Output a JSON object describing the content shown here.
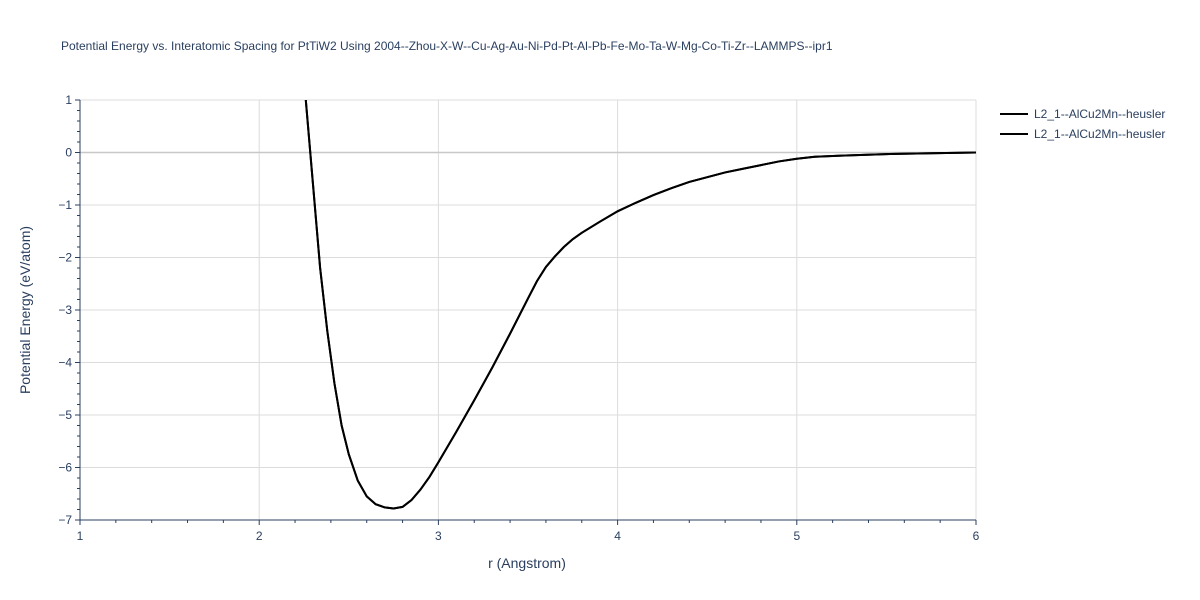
{
  "chart_data": {
    "type": "line",
    "title": "Potential Energy vs. Interatomic Spacing for PtTiW2 Using 2004--Zhou-X-W--Cu-Ag-Au-Ni-Pd-Pt-Al-Pb-Fe-Mo-Ta-W-Mg-Co-Ti-Zr--LAMMPS--ipr1",
    "xlabel": "r (Angstrom)",
    "ylabel": "Potential Energy (eV/atom)",
    "xlim": [
      1,
      6
    ],
    "ylim": [
      -7,
      1
    ],
    "x_ticks": [
      1,
      2,
      3,
      4,
      5,
      6
    ],
    "x_tick_labels": [
      "1",
      "2",
      "3",
      "4",
      "5",
      "6"
    ],
    "y_ticks": [
      1,
      0,
      -1,
      -2,
      -3,
      -4,
      -5,
      -6,
      -7
    ],
    "y_tick_labels": [
      "1",
      "0",
      "−1",
      "−2",
      "−3",
      "−4",
      "−5",
      "−6",
      "−7"
    ],
    "grid": true,
    "legend_position": "top-right",
    "series": [
      {
        "name": "L2_1--AlCu2Mn--heusler",
        "color": "#000000",
        "x": [
          2.26,
          2.3,
          2.34,
          2.38,
          2.42,
          2.46,
          2.5,
          2.55,
          2.6,
          2.65,
          2.7,
          2.75,
          2.8,
          2.85,
          2.9,
          2.95,
          3.0,
          3.1,
          3.2,
          3.3,
          3.4,
          3.5,
          3.55,
          3.6,
          3.65,
          3.7,
          3.75,
          3.8,
          3.9,
          4.0,
          4.1,
          4.2,
          4.3,
          4.4,
          4.5,
          4.6,
          4.7,
          4.8,
          4.9,
          5.0,
          5.05,
          5.1,
          5.25,
          5.5,
          5.75,
          6.0
        ],
        "y": [
          1.0,
          -0.6,
          -2.2,
          -3.4,
          -4.4,
          -5.2,
          -5.75,
          -6.25,
          -6.55,
          -6.7,
          -6.76,
          -6.78,
          -6.75,
          -6.62,
          -6.42,
          -6.18,
          -5.9,
          -5.32,
          -4.72,
          -4.1,
          -3.45,
          -2.78,
          -2.45,
          -2.18,
          -1.98,
          -1.8,
          -1.65,
          -1.53,
          -1.32,
          -1.12,
          -0.96,
          -0.81,
          -0.68,
          -0.56,
          -0.47,
          -0.38,
          -0.31,
          -0.24,
          -0.17,
          -0.12,
          -0.1,
          -0.08,
          -0.06,
          -0.03,
          -0.015,
          0.0
        ]
      },
      {
        "name": "L2_1--AlCu2Mn--heusler",
        "color": "#000000",
        "x": [
          2.26,
          2.3,
          2.34,
          2.38,
          2.42,
          2.46,
          2.5,
          2.55,
          2.6,
          2.65,
          2.7,
          2.75,
          2.8,
          2.85,
          2.9,
          2.95,
          3.0,
          3.1,
          3.2,
          3.3,
          3.4,
          3.5,
          3.55,
          3.6,
          3.65,
          3.7,
          3.75,
          3.8,
          3.9,
          4.0,
          4.1,
          4.2,
          4.3,
          4.4,
          4.5,
          4.6,
          4.7,
          4.8,
          4.9,
          5.0,
          5.05,
          5.1,
          5.25,
          5.5,
          5.75,
          6.0
        ],
        "y": [
          1.0,
          -0.6,
          -2.2,
          -3.4,
          -4.4,
          -5.2,
          -5.75,
          -6.25,
          -6.55,
          -6.7,
          -6.76,
          -6.78,
          -6.75,
          -6.62,
          -6.42,
          -6.18,
          -5.9,
          -5.32,
          -4.72,
          -4.1,
          -3.45,
          -2.78,
          -2.45,
          -2.18,
          -1.98,
          -1.8,
          -1.65,
          -1.53,
          -1.32,
          -1.12,
          -0.96,
          -0.81,
          -0.68,
          -0.56,
          -0.47,
          -0.38,
          -0.31,
          -0.24,
          -0.17,
          -0.12,
          -0.1,
          -0.08,
          -0.06,
          -0.03,
          -0.015,
          0.0
        ]
      }
    ]
  }
}
